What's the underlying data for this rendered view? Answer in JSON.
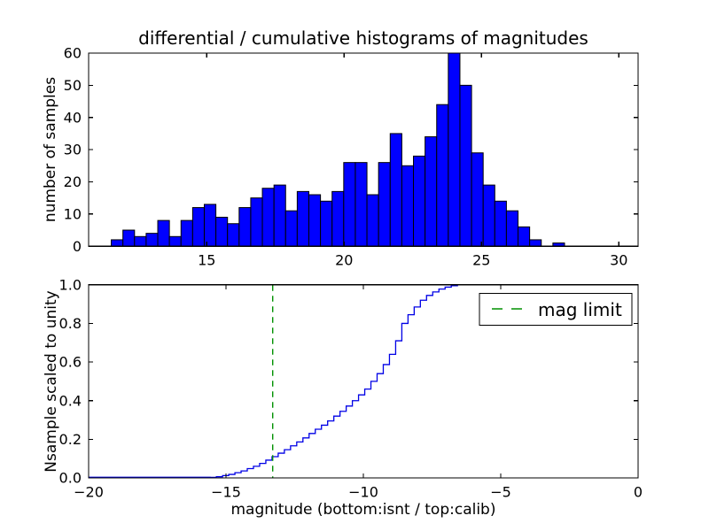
{
  "colors": {
    "background": "#ffffff",
    "bar_fill": "#0000ff",
    "bar_edge": "#000000",
    "curve": "#0000e6",
    "mag_limit_line": "#009000",
    "frame": "#000000",
    "text": "#000000",
    "legend_bg": "#ffffff"
  },
  "chart_data": [
    {
      "type": "bar",
      "subplot": "top",
      "title": "differential / cumulative histograms of magnitudes",
      "ylabel": "number of samples",
      "xlim": [
        10.7,
        30.7
      ],
      "ylim": [
        0,
        60
      ],
      "grid": false,
      "xticks": {
        "values": [
          15,
          20,
          25,
          30
        ],
        "labels": [
          "15",
          "20",
          "25",
          "30"
        ]
      },
      "yticks": {
        "values": [
          0,
          10,
          20,
          30,
          40,
          50,
          60
        ],
        "labels": [
          "0",
          "10",
          "20",
          "30",
          "40",
          "50",
          "60"
        ]
      },
      "bin_start": 11.525,
      "bin_width": 0.423,
      "values": [
        2,
        5,
        3,
        4,
        8,
        3,
        8,
        12,
        13,
        9,
        7,
        12,
        15,
        18,
        19,
        11,
        17,
        16,
        14,
        17,
        26,
        26,
        16,
        26,
        35,
        25,
        28,
        34,
        44,
        60,
        50,
        29,
        19,
        14,
        11,
        6,
        2,
        0,
        1
      ]
    },
    {
      "type": "line",
      "subplot": "bottom",
      "style": "step-cumulative",
      "ylabel": "Nsample scaled to unity",
      "xlabel": "magnitude (bottom:isnt / top:calib)",
      "xlim": [
        -20,
        0
      ],
      "ylim": [
        0.0,
        1.0
      ],
      "grid": false,
      "xticks": {
        "values": [
          -20,
          -15,
          -10,
          -5,
          0
        ],
        "labels": [
          "−20",
          "−15",
          "−10",
          "−5",
          "0"
        ]
      },
      "yticks": {
        "values": [
          0,
          0.2,
          0.4,
          0.6,
          0.8,
          1.0
        ],
        "labels": [
          "0.0",
          "0.2",
          "0.4",
          "0.6",
          "0.8",
          "1.0"
        ]
      },
      "step_edges": [
        -15.575,
        -15.35,
        -15.125,
        -14.9,
        -14.675,
        -14.45,
        -14.225,
        -14.0,
        -13.775,
        -13.55,
        -13.325,
        -13.1,
        -12.875,
        -12.65,
        -12.425,
        -12.2,
        -11.975,
        -11.75,
        -11.525,
        -11.3,
        -11.075,
        -10.85,
        -10.625,
        -10.4,
        -10.175,
        -9.95,
        -9.725,
        -9.5,
        -9.275,
        -9.05,
        -8.825,
        -8.6,
        -8.375,
        -8.15,
        -7.925,
        -7.7,
        -7.475,
        -7.25,
        -7.025,
        -6.8,
        -6.575,
        -6.35
      ],
      "cumulative": [
        0.003,
        0.006,
        0.012,
        0.018,
        0.027,
        0.036,
        0.048,
        0.06,
        0.075,
        0.092,
        0.11,
        0.128,
        0.146,
        0.166,
        0.186,
        0.207,
        0.23,
        0.252,
        0.273,
        0.295,
        0.32,
        0.345,
        0.372,
        0.4,
        0.43,
        0.46,
        0.5,
        0.54,
        0.587,
        0.64,
        0.71,
        0.8,
        0.845,
        0.885,
        0.92,
        0.945,
        0.963,
        0.978,
        0.988,
        0.995,
        1.0
      ],
      "zero_line_start": -20,
      "mag_limit": {
        "x": -13.3,
        "linestyle": "dashed",
        "label": "mag limit"
      },
      "legend": {
        "entries": [
          "mag limit"
        ],
        "position": "upper right"
      }
    }
  ]
}
